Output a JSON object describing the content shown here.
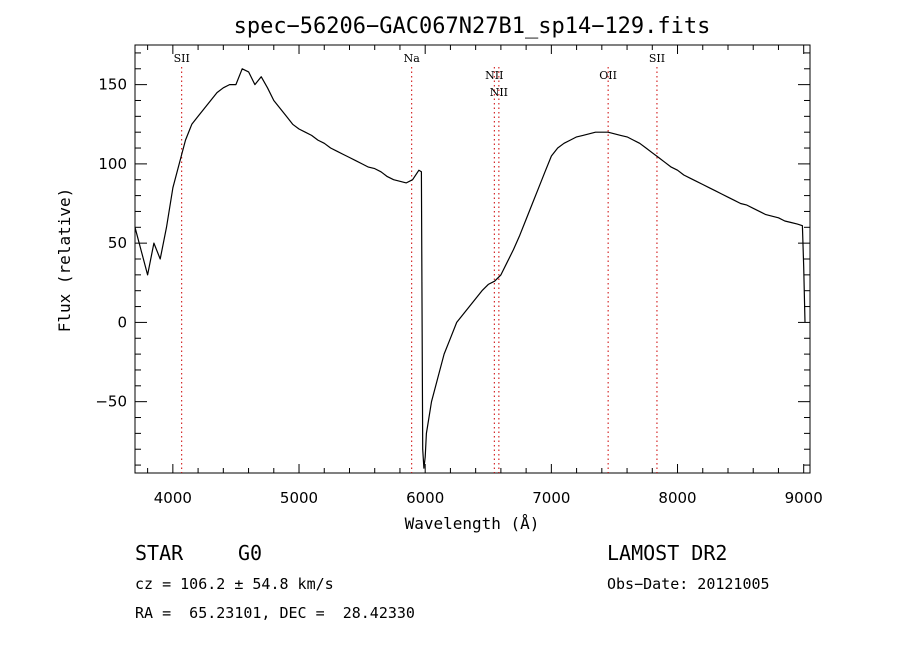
{
  "chart_data": {
    "type": "line",
    "title": "spec−56206−GAC067N27B1_sp14−129.fits",
    "xlabel": "Wavelength (Å)",
    "ylabel": "Flux (relative)",
    "xlim": [
      3700,
      9050
    ],
    "ylim": [
      -95,
      175
    ],
    "xticks": [
      4000,
      5000,
      6000,
      7000,
      8000,
      9000
    ],
    "xticklabels": [
      "4000",
      "5000",
      "6000",
      "7000",
      "8000",
      "9000"
    ],
    "yticks": [
      -50,
      0,
      50,
      100,
      150
    ],
    "yticklabels": [
      "−50",
      "0",
      "50",
      "100",
      "150"
    ],
    "grid": false,
    "lines": [
      {
        "label": "SII",
        "x": 4070,
        "row": 0
      },
      {
        "label": "Na",
        "x": 5893,
        "row": 0
      },
      {
        "label": "NII",
        "x": 6548,
        "row": 1
      },
      {
        "label": "NII",
        "x": 6584,
        "row": 2
      },
      {
        "label": "OII",
        "x": 7450,
        "row": 1
      },
      {
        "label": "SII",
        "x": 7837,
        "row": 0
      }
    ],
    "series": [
      {
        "name": "flux",
        "color": "#000000",
        "x": [
          3700,
          3750,
          3800,
          3850,
          3900,
          3950,
          4000,
          4050,
          4100,
          4150,
          4200,
          4250,
          4300,
          4350,
          4400,
          4450,
          4500,
          4550,
          4600,
          4650,
          4700,
          4750,
          4800,
          4850,
          4900,
          4950,
          5000,
          5050,
          5100,
          5150,
          5200,
          5250,
          5300,
          5350,
          5400,
          5450,
          5500,
          5550,
          5600,
          5650,
          5700,
          5750,
          5800,
          5850,
          5900,
          5950,
          5970,
          5980,
          5990,
          6000,
          6010,
          6020,
          6050,
          6100,
          6150,
          6200,
          6250,
          6300,
          6350,
          6400,
          6450,
          6500,
          6550,
          6600,
          6650,
          6700,
          6750,
          6800,
          6850,
          6900,
          6950,
          7000,
          7050,
          7100,
          7150,
          7200,
          7250,
          7300,
          7350,
          7400,
          7450,
          7500,
          7550,
          7600,
          7650,
          7700,
          7750,
          7800,
          7850,
          7900,
          7950,
          8000,
          8050,
          8100,
          8150,
          8200,
          8250,
          8300,
          8350,
          8400,
          8450,
          8500,
          8550,
          8600,
          8650,
          8700,
          8750,
          8800,
          8850,
          8900,
          8950,
          8990,
          9000,
          9010
        ],
        "y": [
          60,
          45,
          30,
          50,
          40,
          60,
          85,
          100,
          115,
          125,
          130,
          135,
          140,
          145,
          148,
          150,
          150,
          160,
          158,
          150,
          155,
          148,
          140,
          135,
          130,
          125,
          122,
          120,
          118,
          115,
          113,
          110,
          108,
          106,
          104,
          102,
          100,
          98,
          97,
          95,
          92,
          90,
          89,
          88,
          90,
          96,
          95,
          -80,
          -92,
          -85,
          -70,
          -65,
          -50,
          -35,
          -20,
          -10,
          0,
          5,
          10,
          15,
          20,
          24,
          26,
          30,
          38,
          46,
          55,
          65,
          75,
          85,
          95,
          105,
          110,
          113,
          115,
          117,
          118,
          119,
          120,
          120,
          120,
          119,
          118,
          117,
          115,
          113,
          110,
          107,
          104,
          101,
          98,
          96,
          93,
          91,
          89,
          87,
          85,
          83,
          81,
          79,
          77,
          75,
          74,
          72,
          70,
          68,
          67,
          66,
          64,
          63,
          62,
          61,
          35,
          0
        ]
      }
    ]
  },
  "info": {
    "class_label": "STAR",
    "subclass": "G0",
    "survey": "LAMOST DR2",
    "cz_line": "cz = 106.2 ± 54.8 km/s",
    "obs_date": "Obs−Date: 20121005",
    "coords": "RA =  65.23101, DEC =  28.42330"
  }
}
